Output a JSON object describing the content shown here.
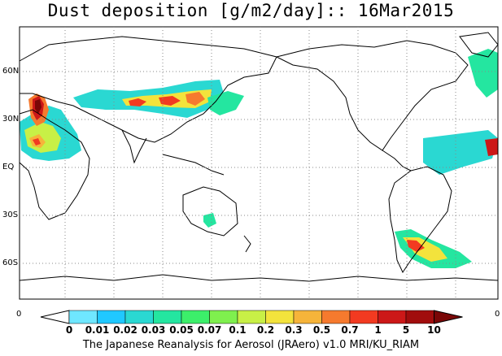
{
  "title": "Dust deposition [g/m2/day]:: 16Mar2015",
  "lat_labels": [
    "60N",
    "30N",
    "EQ",
    "30S",
    "60S"
  ],
  "colorbar": {
    "end_left_label": "0",
    "end_right_label": "0",
    "tick_labels": [
      "0",
      "0.01",
      "0.02",
      "0.03",
      "0.05",
      "0.07",
      "0.1",
      "0.2",
      "0.3",
      "0.5",
      "0.7",
      "1",
      "5",
      "10"
    ],
    "colors": [
      "#ffffff",
      "#6fe7ff",
      "#20c8ff",
      "#2ad8d2",
      "#24e6a0",
      "#3cef6a",
      "#7ff04e",
      "#c8f046",
      "#f3e33c",
      "#f6b43a",
      "#f67a2e",
      "#f23a21",
      "#cc1818",
      "#a10d0d",
      "#7a0707"
    ]
  },
  "footer": "The Japanese Reanalysis for Aerosol (JRAero) v1.0 MRI/KU_RIAM"
}
